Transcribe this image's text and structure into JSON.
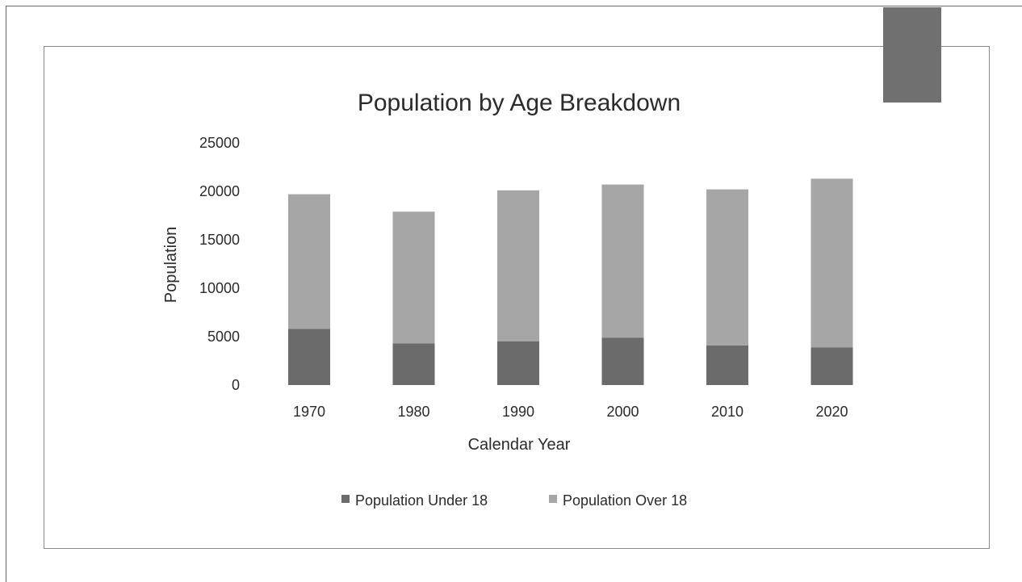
{
  "chart_data": {
    "type": "bar",
    "stacked": true,
    "title": "Population by Age Breakdown",
    "xlabel": "Calendar Year",
    "ylabel": "Population",
    "categories": [
      "1970",
      "1980",
      "1990",
      "2000",
      "2010",
      "2020"
    ],
    "y_ticks": [
      "0",
      "5000",
      "10000",
      "15000",
      "20000",
      "25000"
    ],
    "ylim": [
      0,
      25000
    ],
    "grid": false,
    "legend_position": "bottom",
    "series": [
      {
        "name": "Population Under 18",
        "color": "#6b6b6b",
        "values": [
          5800,
          4300,
          4500,
          4900,
          4100,
          3900
        ]
      },
      {
        "name": "Population Over 18",
        "color": "#a6a6a6",
        "values": [
          13900,
          13600,
          15600,
          15800,
          16100,
          17400
        ]
      }
    ]
  }
}
